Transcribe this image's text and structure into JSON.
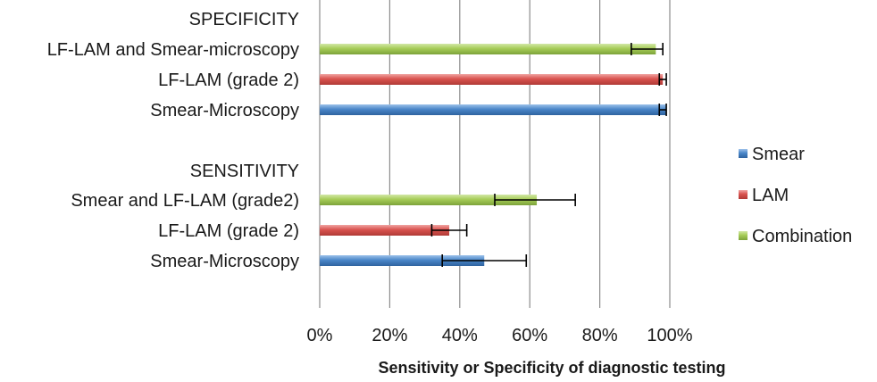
{
  "chart_data": {
    "type": "bar",
    "orientation": "horizontal",
    "xlabel": "Sensitivity or Specificity of diagnostic testing",
    "xlim": [
      0,
      100
    ],
    "x_ticks": [
      "0%",
      "20%",
      "40%",
      "60%",
      "80%",
      "100%"
    ],
    "grid": true,
    "legend_position": "right",
    "groups": [
      {
        "heading": "SPECIFICITY",
        "bars": [
          {
            "label": "LF-LAM and Smear-microscopy",
            "series": "Combination",
            "value": 96,
            "err_low": 89,
            "err_high": 98
          },
          {
            "label": "LF-LAM (grade 2)",
            "series": "LAM",
            "value": 98,
            "err_low": 97,
            "err_high": 99
          },
          {
            "label": "Smear-Microscopy",
            "series": "Smear",
            "value": 99,
            "err_low": 97,
            "err_high": 99
          }
        ]
      },
      {
        "heading": "SENSITIVITY",
        "bars": [
          {
            "label": "Smear and LF-LAM (grade2)",
            "series": "Combination",
            "value": 62,
            "err_low": 50,
            "err_high": 73
          },
          {
            "label": "LF-LAM (grade 2)",
            "series": "LAM",
            "value": 37,
            "err_low": 32,
            "err_high": 42
          },
          {
            "label": "Smear-Microscopy",
            "series": "Smear",
            "value": 47,
            "err_low": 35,
            "err_high": 59
          }
        ]
      }
    ],
    "legend": [
      {
        "name": "Smear",
        "color": "#4a86c8"
      },
      {
        "name": "LAM",
        "color": "#d9534f"
      },
      {
        "name": "Combination",
        "color": "#9bc24a"
      }
    ]
  }
}
